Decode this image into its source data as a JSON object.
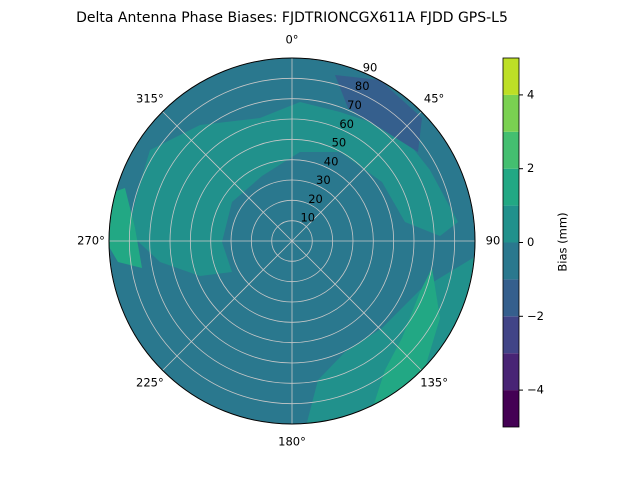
{
  "chart_data": {
    "type": "polar-contour",
    "title": "Delta Antenna Phase Biases: FJDTRIONCGX611A FJDD GPS-L5",
    "theta_labels": [
      "0°",
      "45°",
      "90",
      "135°",
      "180°",
      "225°",
      "270°",
      "315°"
    ],
    "rlim": [
      0,
      90
    ],
    "rticks": [
      10,
      20,
      30,
      40,
      50,
      60,
      70,
      80,
      90
    ],
    "grid": true,
    "colorbar": {
      "label": "Bias (mm)",
      "levels": [
        -5,
        -4,
        -3,
        -2,
        -1,
        0,
        1,
        2,
        3,
        4,
        5
      ],
      "colors": [
        "#440154",
        "#482475",
        "#414487",
        "#355f8d",
        "#2a788e",
        "#21918c",
        "#22a884",
        "#44bf70",
        "#7ad151",
        "#bddf26"
      ],
      "ylim": [
        -5,
        5
      ],
      "yticks": [
        {
          "value": -4,
          "label": "−4"
        },
        {
          "value": -2,
          "label": "−2"
        },
        0,
        2,
        4
      ]
    }
  }
}
